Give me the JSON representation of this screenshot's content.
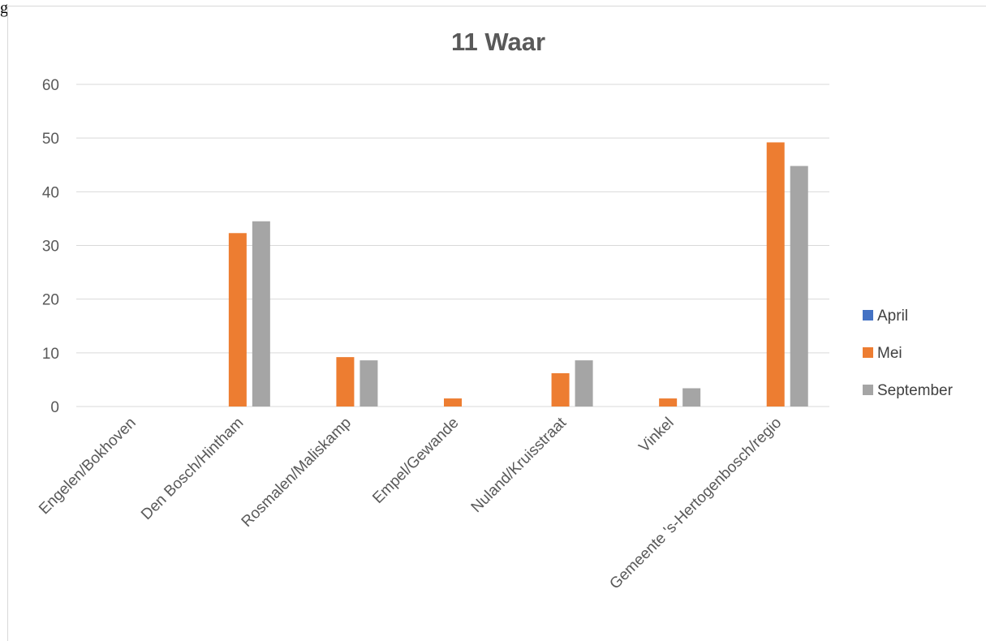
{
  "page": {
    "mark": "g"
  },
  "chart_data": {
    "type": "bar",
    "title": "11 Waar",
    "xlabel": "",
    "ylabel": "",
    "ylim": [
      0,
      60
    ],
    "yticks": [
      0,
      10,
      20,
      30,
      40,
      50,
      60
    ],
    "grid": true,
    "legend_position": "right",
    "categories": [
      "Engelen/Bokhoven",
      "Den Bosch/Hintham",
      "Rosmalen/Maliskamp",
      "Empel/Gewande",
      "Nuland/Kruisstraat",
      "Vinkel",
      "Gemeente 's-Hertogenbosch/regio"
    ],
    "series": [
      {
        "name": "April",
        "color": "#4472c4",
        "values": [
          0,
          0,
          0,
          0,
          0,
          0,
          0
        ]
      },
      {
        "name": "Mei",
        "color": "#ed7d31",
        "values": [
          0,
          32.3,
          9.2,
          1.5,
          6.2,
          1.5,
          49.2
        ]
      },
      {
        "name": "September",
        "color": "#a5a5a5",
        "values": [
          0,
          34.5,
          8.6,
          0,
          8.6,
          3.4,
          44.8
        ]
      }
    ]
  }
}
